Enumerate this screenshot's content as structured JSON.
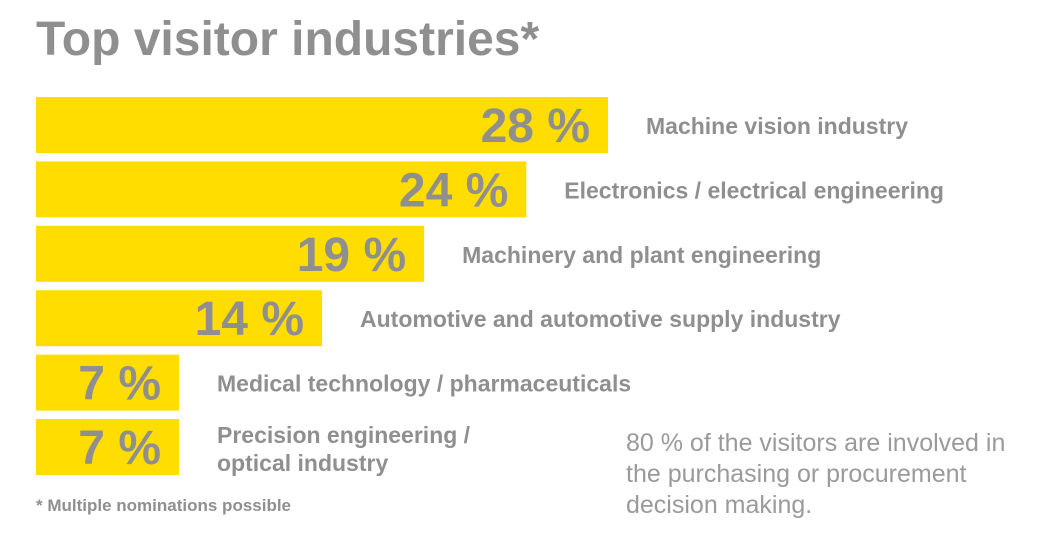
{
  "title": "Top visitor industries*",
  "footnote": "* Multiple nominations possible",
  "note": "80 % of the visitors are involved in the purchasing or procurement decision making.",
  "colors": {
    "bar": "#FFDD00",
    "text": "#8f8f8f"
  },
  "chart_data": {
    "type": "bar",
    "orientation": "horizontal",
    "unit": "%",
    "categories": [
      "Machine vision industry",
      "Electronics / electrical engineering",
      "Machinery and plant engineering",
      "Automotive and automotive supply industry",
      "Medical technology / pharmaceuticals",
      "Precision engineering / optical industry"
    ],
    "values": [
      28,
      24,
      19,
      14,
      7,
      7
    ],
    "value_labels": [
      "28 %",
      "24 %",
      "19 %",
      "14 %",
      "7 %",
      "7 %"
    ]
  }
}
